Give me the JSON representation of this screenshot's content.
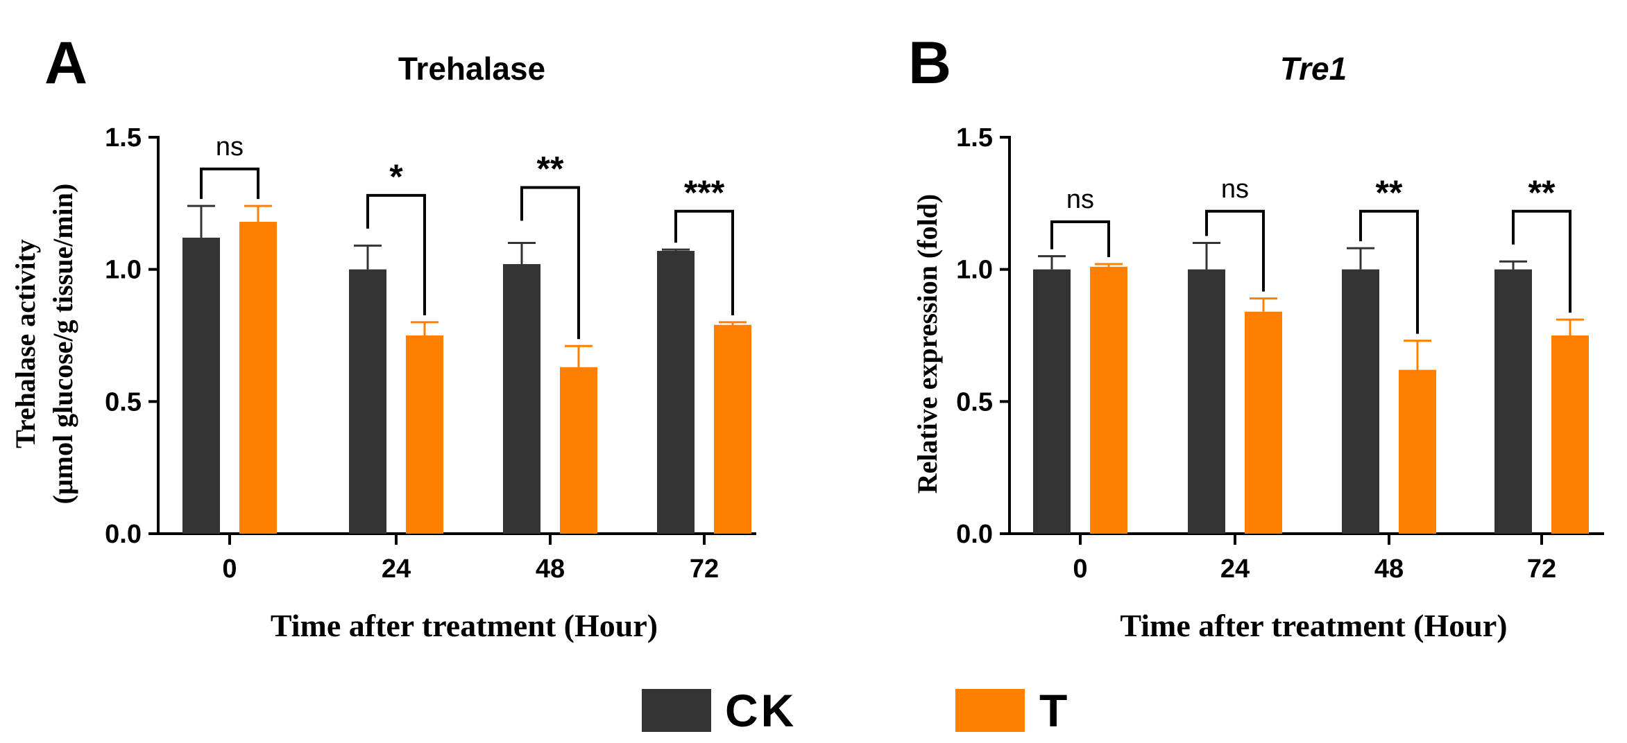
{
  "colors": {
    "CK": "#333333",
    "T": "#ff8000",
    "axis": "#000000"
  },
  "legend": {
    "items": [
      {
        "key": "CK",
        "label": "CK"
      },
      {
        "key": "T",
        "label": "T"
      }
    ]
  },
  "chart_data": [
    {
      "panel": "A",
      "type": "bar",
      "title": "Trehalase",
      "title_style": "bold",
      "xlabel": "Time after treatment (Hour)",
      "ylabel": [
        "Trehalase activity",
        "(μmol glucose/g tissue/min)"
      ],
      "ylim": [
        0,
        1.5
      ],
      "yticks": [
        "0.0",
        "0.5",
        "1.0",
        "1.5"
      ],
      "categories": [
        "0",
        "24",
        "48",
        "72"
      ],
      "series": [
        {
          "name": "CK",
          "values": [
            1.12,
            1.0,
            1.02,
            1.07
          ],
          "errors": [
            0.12,
            0.09,
            0.08,
            0.005
          ]
        },
        {
          "name": "T",
          "values": [
            1.18,
            0.75,
            0.63,
            0.79
          ],
          "errors": [
            0.06,
            0.05,
            0.08,
            0.01
          ]
        }
      ],
      "significance": [
        "ns",
        "*",
        "**",
        "***"
      ],
      "bracket_y": [
        1.38,
        1.28,
        1.31,
        1.22
      ]
    },
    {
      "panel": "B",
      "type": "bar",
      "title": "Tre1",
      "title_style": "bold-italic",
      "xlabel": "Time after treatment (Hour)",
      "ylabel": [
        "Relative expression (fold)"
      ],
      "ylim": [
        0,
        1.5
      ],
      "yticks": [
        "0.0",
        "0.5",
        "1.0",
        "1.5"
      ],
      "categories": [
        "0",
        "24",
        "48",
        "72"
      ],
      "series": [
        {
          "name": "CK",
          "values": [
            1.0,
            1.0,
            1.0,
            1.0
          ],
          "errors": [
            0.05,
            0.1,
            0.08,
            0.03
          ]
        },
        {
          "name": "T",
          "values": [
            1.01,
            0.84,
            0.62,
            0.75
          ],
          "errors": [
            0.01,
            0.05,
            0.11,
            0.06
          ]
        }
      ],
      "significance": [
        "ns",
        "ns",
        "**",
        "**"
      ],
      "bracket_y": [
        1.18,
        1.22,
        1.22,
        1.22
      ]
    }
  ]
}
